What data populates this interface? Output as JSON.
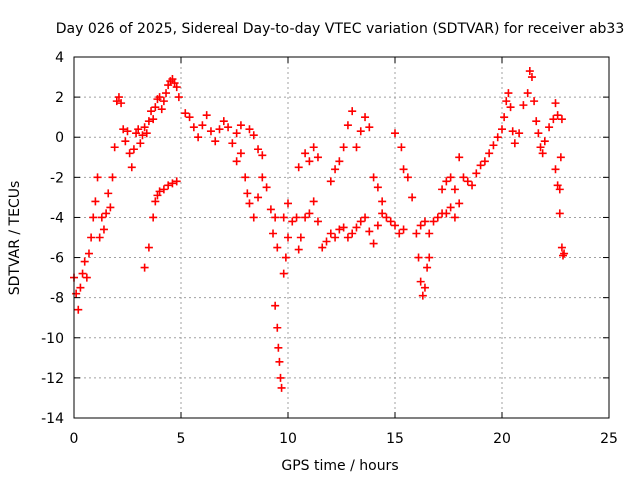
{
  "chart_data": {
    "type": "scatter",
    "title": "Day 026 of 2025, Sidereal Day-to-day VTEC variation (SDTVAR) for receiver ab33",
    "xlabel": "GPS time / hours",
    "ylabel": "SDTVAR / TECUs",
    "xlim": [
      0,
      25
    ],
    "ylim": [
      -14,
      4
    ],
    "xticks": [
      0,
      5,
      10,
      15,
      20,
      25
    ],
    "yticks": [
      -14,
      -12,
      -10,
      -8,
      -6,
      -4,
      -2,
      0,
      2,
      4
    ],
    "grid": true,
    "marker": "+",
    "color": "#ff0000",
    "series": [
      {
        "name": "SDTVAR",
        "points": [
          [
            0.0,
            -7.0
          ],
          [
            0.1,
            -7.8
          ],
          [
            0.2,
            -8.6
          ],
          [
            0.3,
            -7.5
          ],
          [
            0.4,
            -6.8
          ],
          [
            0.5,
            -6.2
          ],
          [
            0.6,
            -7.0
          ],
          [
            0.7,
            -5.8
          ],
          [
            0.8,
            -5.0
          ],
          [
            0.9,
            -4.0
          ],
          [
            1.0,
            -3.2
          ],
          [
            1.1,
            -2.0
          ],
          [
            1.2,
            -5.0
          ],
          [
            1.3,
            -4.0
          ],
          [
            1.4,
            -4.6
          ],
          [
            1.5,
            -3.8
          ],
          [
            1.6,
            -2.8
          ],
          [
            1.7,
            -3.5
          ],
          [
            1.8,
            -2.0
          ],
          [
            1.9,
            -0.5
          ],
          [
            2.0,
            1.8
          ],
          [
            2.1,
            2.0
          ],
          [
            2.2,
            1.7
          ],
          [
            2.3,
            0.4
          ],
          [
            2.4,
            -0.2
          ],
          [
            2.5,
            0.3
          ],
          [
            2.6,
            -0.8
          ],
          [
            2.7,
            -1.5
          ],
          [
            2.8,
            -0.6
          ],
          [
            2.9,
            0.2
          ],
          [
            3.0,
            0.4
          ],
          [
            3.1,
            -0.3
          ],
          [
            3.2,
            0.1
          ],
          [
            3.3,
            0.5
          ],
          [
            3.4,
            0.2
          ],
          [
            3.5,
            0.8
          ],
          [
            3.6,
            1.3
          ],
          [
            3.7,
            0.9
          ],
          [
            3.8,
            1.5
          ],
          [
            3.9,
            1.9
          ],
          [
            4.0,
            2.0
          ],
          [
            4.1,
            1.4
          ],
          [
            4.2,
            1.8
          ],
          [
            4.3,
            2.2
          ],
          [
            4.4,
            2.6
          ],
          [
            4.5,
            2.8
          ],
          [
            4.6,
            2.9
          ],
          [
            4.7,
            2.7
          ],
          [
            4.8,
            2.5
          ],
          [
            4.9,
            2.0
          ],
          [
            3.3,
            -6.5
          ],
          [
            3.5,
            -5.5
          ],
          [
            3.7,
            -4.0
          ],
          [
            3.8,
            -3.2
          ],
          [
            3.9,
            -2.9
          ],
          [
            4.0,
            -2.7
          ],
          [
            4.2,
            -2.6
          ],
          [
            4.4,
            -2.4
          ],
          [
            4.6,
            -2.3
          ],
          [
            4.8,
            -2.2
          ],
          [
            5.2,
            1.2
          ],
          [
            5.4,
            1.0
          ],
          [
            5.6,
            0.5
          ],
          [
            5.8,
            0.0
          ],
          [
            6.0,
            0.6
          ],
          [
            6.2,
            1.1
          ],
          [
            6.4,
            0.3
          ],
          [
            6.6,
            -0.2
          ],
          [
            6.8,
            0.4
          ],
          [
            7.0,
            0.8
          ],
          [
            7.2,
            0.5
          ],
          [
            7.4,
            -0.3
          ],
          [
            7.6,
            0.2
          ],
          [
            7.8,
            0.6
          ],
          [
            7.6,
            -1.2
          ],
          [
            7.8,
            -0.8
          ],
          [
            8.2,
            0.4
          ],
          [
            8.4,
            0.1
          ],
          [
            8.6,
            -0.6
          ],
          [
            8.8,
            -0.9
          ],
          [
            8.0,
            -2.0
          ],
          [
            8.1,
            -2.8
          ],
          [
            8.2,
            -3.3
          ],
          [
            8.4,
            -4.0
          ],
          [
            8.6,
            -3.0
          ],
          [
            8.8,
            -2.0
          ],
          [
            9.0,
            -2.5
          ],
          [
            9.2,
            -3.6
          ],
          [
            9.3,
            -4.8
          ],
          [
            9.4,
            -4.0
          ],
          [
            9.5,
            -5.5
          ],
          [
            9.4,
            -8.4
          ],
          [
            9.5,
            -9.5
          ],
          [
            9.55,
            -10.5
          ],
          [
            9.6,
            -11.2
          ],
          [
            9.65,
            -12.0
          ],
          [
            9.7,
            -12.5
          ],
          [
            9.8,
            -6.8
          ],
          [
            9.9,
            -6.0
          ],
          [
            10.0,
            -5.0
          ],
          [
            9.8,
            -4.0
          ],
          [
            10.0,
            -3.3
          ],
          [
            10.2,
            -4.2
          ],
          [
            10.4,
            -4.0
          ],
          [
            10.5,
            -5.6
          ],
          [
            10.6,
            -5.0
          ],
          [
            10.8,
            -4.0
          ],
          [
            11.0,
            -3.8
          ],
          [
            11.2,
            -3.2
          ],
          [
            11.4,
            -4.2
          ],
          [
            10.5,
            -1.5
          ],
          [
            10.8,
            -0.8
          ],
          [
            11.0,
            -1.2
          ],
          [
            11.2,
            -0.5
          ],
          [
            11.4,
            -1.0
          ],
          [
            11.6,
            -5.5
          ],
          [
            11.8,
            -5.2
          ],
          [
            12.0,
            -4.8
          ],
          [
            12.2,
            -5.0
          ],
          [
            12.4,
            -4.6
          ],
          [
            12.0,
            -2.2
          ],
          [
            12.2,
            -1.6
          ],
          [
            12.4,
            -1.2
          ],
          [
            12.6,
            -0.5
          ],
          [
            12.8,
            0.6
          ],
          [
            13.0,
            1.3
          ],
          [
            13.2,
            -0.5
          ],
          [
            13.4,
            0.3
          ],
          [
            13.6,
            1.0
          ],
          [
            13.8,
            0.5
          ],
          [
            12.6,
            -4.5
          ],
          [
            12.8,
            -5.0
          ],
          [
            13.0,
            -4.8
          ],
          [
            13.2,
            -4.5
          ],
          [
            13.4,
            -4.2
          ],
          [
            13.6,
            -4.0
          ],
          [
            13.8,
            -4.7
          ],
          [
            14.0,
            -5.3
          ],
          [
            14.2,
            -4.4
          ],
          [
            14.4,
            -3.8
          ],
          [
            14.0,
            -2.0
          ],
          [
            14.2,
            -2.5
          ],
          [
            14.4,
            -3.2
          ],
          [
            14.6,
            -4.0
          ],
          [
            14.8,
            -4.2
          ],
          [
            15.0,
            -4.4
          ],
          [
            15.2,
            -4.8
          ],
          [
            15.4,
            -4.6
          ],
          [
            15.0,
            0.2
          ],
          [
            15.3,
            -0.5
          ],
          [
            15.4,
            -1.6
          ],
          [
            15.6,
            -2.0
          ],
          [
            15.8,
            -3.0
          ],
          [
            16.0,
            -4.8
          ],
          [
            16.1,
            -6.0
          ],
          [
            16.2,
            -7.2
          ],
          [
            16.3,
            -7.9
          ],
          [
            16.4,
            -7.5
          ],
          [
            16.5,
            -6.5
          ],
          [
            16.6,
            -6.0
          ],
          [
            16.2,
            -4.4
          ],
          [
            16.4,
            -4.2
          ],
          [
            16.6,
            -4.8
          ],
          [
            16.8,
            -4.2
          ],
          [
            17.0,
            -4.0
          ],
          [
            17.2,
            -3.8
          ],
          [
            17.4,
            -3.8
          ],
          [
            17.6,
            -3.5
          ],
          [
            17.8,
            -4.0
          ],
          [
            18.0,
            -3.3
          ],
          [
            17.2,
            -2.6
          ],
          [
            17.4,
            -2.2
          ],
          [
            17.6,
            -2.0
          ],
          [
            17.8,
            -2.6
          ],
          [
            18.0,
            -1.0
          ],
          [
            18.2,
            -2.0
          ],
          [
            18.4,
            -2.2
          ],
          [
            18.6,
            -2.4
          ],
          [
            18.8,
            -1.8
          ],
          [
            19.0,
            -1.4
          ],
          [
            19.2,
            -1.2
          ],
          [
            19.4,
            -0.8
          ],
          [
            19.6,
            -0.4
          ],
          [
            19.8,
            0.0
          ],
          [
            20.0,
            0.4
          ],
          [
            20.1,
            1.0
          ],
          [
            20.2,
            1.8
          ],
          [
            20.3,
            2.2
          ],
          [
            20.4,
            1.5
          ],
          [
            20.5,
            0.3
          ],
          [
            20.6,
            -0.3
          ],
          [
            20.8,
            0.2
          ],
          [
            21.0,
            1.6
          ],
          [
            21.2,
            2.2
          ],
          [
            21.3,
            3.3
          ],
          [
            21.4,
            3.0
          ],
          [
            21.5,
            1.8
          ],
          [
            21.6,
            0.8
          ],
          [
            21.7,
            0.2
          ],
          [
            21.8,
            -0.5
          ],
          [
            21.9,
            -0.8
          ],
          [
            22.0,
            -0.2
          ],
          [
            22.2,
            0.5
          ],
          [
            22.4,
            0.9
          ],
          [
            22.5,
            1.7
          ],
          [
            22.6,
            1.1
          ],
          [
            22.8,
            0.9
          ],
          [
            22.5,
            -1.6
          ],
          [
            22.6,
            -2.4
          ],
          [
            22.7,
            -3.8
          ],
          [
            22.8,
            -5.5
          ],
          [
            22.9,
            -5.8
          ],
          [
            22.85,
            -5.9
          ],
          [
            22.7,
            -2.6
          ],
          [
            22.75,
            -1.0
          ]
        ]
      }
    ]
  }
}
